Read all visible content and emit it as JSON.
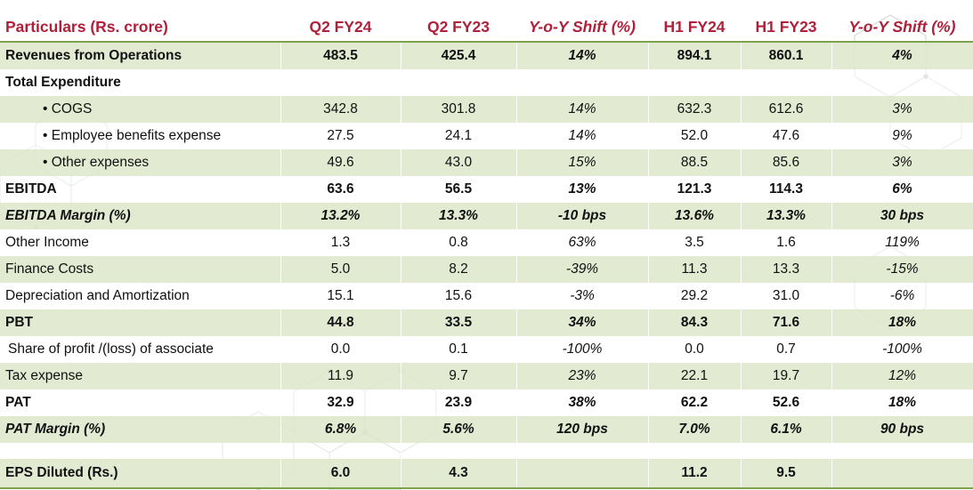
{
  "table": {
    "header": [
      "Particulars (Rs. crore)",
      "Q2 FY24",
      "Q2 FY23",
      "Y-o-Y Shift (%)",
      "H1 FY24",
      "H1 FY23",
      "Y-o-Y Shift (%)"
    ],
    "rows": [
      {
        "label": "Revenues from Operations",
        "values": [
          "483.5",
          "425.4",
          "14%",
          "894.1",
          "860.1",
          "4%"
        ]
      },
      {
        "label": "Total Expenditure",
        "values": [
          "",
          "",
          "",
          "",
          "",
          ""
        ]
      },
      {
        "label": "• COGS",
        "values": [
          "342.8",
          "301.8",
          "14%",
          "632.3",
          "612.6",
          "3%"
        ]
      },
      {
        "label": "• Employee benefits expense",
        "values": [
          "27.5",
          "24.1",
          "14%",
          "52.0",
          "47.6",
          "9%"
        ]
      },
      {
        "label": "• Other expenses",
        "values": [
          "49.6",
          "43.0",
          "15%",
          "88.5",
          "85.6",
          "3%"
        ]
      },
      {
        "label": "EBITDA",
        "values": [
          "63.6",
          "56.5",
          "13%",
          "121.3",
          "114.3",
          "6%"
        ]
      },
      {
        "label": "EBITDA Margin (%)",
        "values": [
          "13.2%",
          "13.3%",
          "-10 bps",
          "13.6%",
          "13.3%",
          "30 bps"
        ]
      },
      {
        "label": "Other Income",
        "values": [
          "1.3",
          "0.8",
          "63%",
          "3.5",
          "1.6",
          "119%"
        ]
      },
      {
        "label": "Finance Costs",
        "values": [
          "5.0",
          "8.2",
          "-39%",
          "11.3",
          "13.3",
          "-15%"
        ]
      },
      {
        "label": "Depreciation and Amortization",
        "values": [
          "15.1",
          "15.6",
          "-3%",
          "29.2",
          "31.0",
          "-6%"
        ]
      },
      {
        "label": "PBT",
        "values": [
          "44.8",
          "33.5",
          "34%",
          "84.3",
          "71.6",
          "18%"
        ]
      },
      {
        "label": "Share of profit /(loss) of associate",
        "values": [
          "0.0",
          "0.1",
          "-100%",
          "0.0",
          "0.7",
          "-100%"
        ]
      },
      {
        "label": "Tax expense",
        "values": [
          "11.9",
          "9.7",
          "23%",
          "22.1",
          "19.7",
          "12%"
        ]
      },
      {
        "label": "PAT",
        "values": [
          "32.9",
          "23.9",
          "38%",
          "62.2",
          "52.6",
          "18%"
        ]
      },
      {
        "label": "PAT Margin (%)",
        "values": [
          "6.8%",
          "5.6%",
          "120 bps",
          "7.0%",
          "6.1%",
          "90 bps"
        ]
      },
      {
        "label": "EPS Diluted (Rs.)",
        "values": [
          "6.0",
          "4.3",
          "",
          "11.2",
          "9.5",
          ""
        ]
      }
    ]
  },
  "colors": {
    "header_text": "#b0203a",
    "band_green": "#dee8cc",
    "rule_green": "#7aa34a",
    "hex_pattern": "#c8d8c8"
  }
}
